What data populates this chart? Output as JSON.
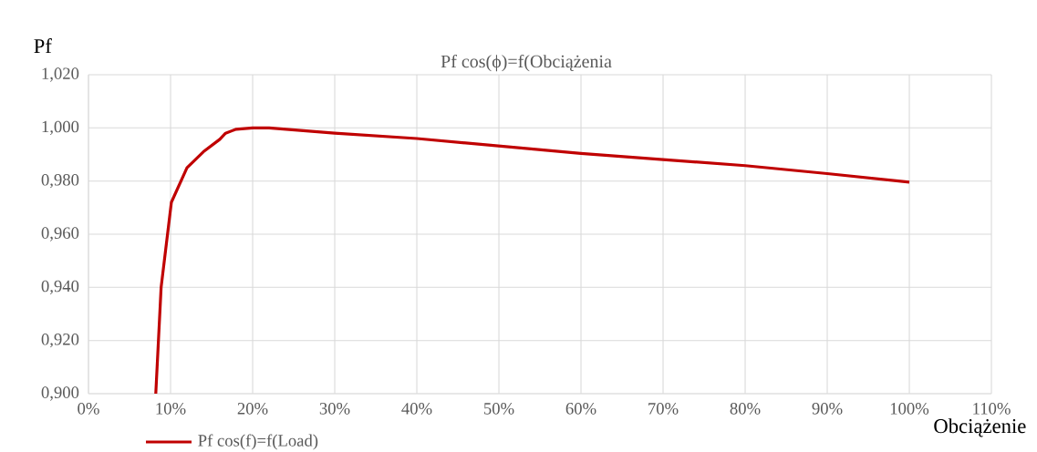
{
  "chart_data": {
    "type": "line",
    "title": "Pf cos(ϕ)=f(Obciążenia",
    "xlabel": "Obciążenie",
    "ylabel": "Pf",
    "x": [
      8.2,
      8.85,
      10.1,
      12,
      14,
      16,
      16.7,
      18,
      20,
      22,
      30,
      40,
      50,
      60,
      70,
      80,
      90,
      100
    ],
    "series": [
      {
        "name": "Pf cos(f)=f(Load)",
        "color": "#c00000",
        "values": [
          0.9,
          0.94,
          0.972,
          0.985,
          0.991,
          0.9957,
          0.998,
          0.9995,
          1.0,
          1.0,
          0.998,
          0.996,
          0.9932,
          0.9904,
          0.9881,
          0.9858,
          0.9828,
          0.9796
        ]
      }
    ],
    "xlim": [
      0,
      110
    ],
    "xticks": [
      {
        "value": 0,
        "label": "0%"
      },
      {
        "value": 10,
        "label": "10%"
      },
      {
        "value": 20,
        "label": "20%"
      },
      {
        "value": 30,
        "label": "30%"
      },
      {
        "value": 40,
        "label": "40%"
      },
      {
        "value": 50,
        "label": "50%"
      },
      {
        "value": 60,
        "label": "60%"
      },
      {
        "value": 70,
        "label": "70%"
      },
      {
        "value": 80,
        "label": "80%"
      },
      {
        "value": 90,
        "label": "90%"
      },
      {
        "value": 100,
        "label": "100%"
      },
      {
        "value": 110,
        "label": "110%"
      }
    ],
    "ylim": [
      0.9,
      1.02
    ],
    "yticks": [
      {
        "value": 0.9,
        "label": "0,900"
      },
      {
        "value": 0.92,
        "label": "0,920"
      },
      {
        "value": 0.94,
        "label": "0,940"
      },
      {
        "value": 0.96,
        "label": "0,960"
      },
      {
        "value": 0.98,
        "label": "0,980"
      },
      {
        "value": 1.0,
        "label": "1,000"
      },
      {
        "value": 1.02,
        "label": "1,020"
      }
    ],
    "grid": true,
    "legend": "bottom",
    "marker": "none",
    "line_style": "solid"
  }
}
